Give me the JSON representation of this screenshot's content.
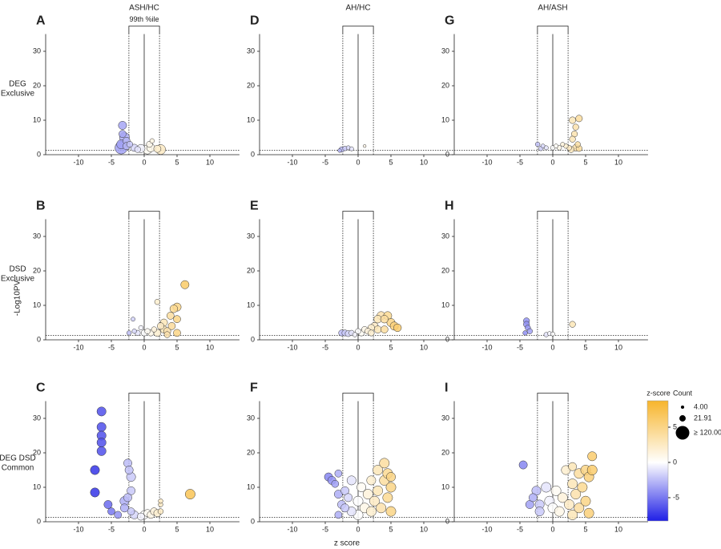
{
  "column_titles": [
    "ASH/HC",
    "AH/HC",
    "AH/ASH"
  ],
  "row_labels": [
    [
      "DEG",
      "Exclusive"
    ],
    [
      "DSD",
      "Exclusive"
    ],
    [
      "DEG DSD",
      "Common"
    ]
  ],
  "y_label": "-Log10PV",
  "x_label": "z score",
  "colorbar": {
    "title": "z-score",
    "clim": [
      -8.3,
      8.75
    ],
    "ticks": [
      -5,
      0,
      5
    ],
    "colors": [
      "#1f1fe6",
      "#ffffff",
      "#f7b52c"
    ]
  },
  "size_legend": {
    "title": "Count",
    "values": [
      {
        "value": 4,
        "label": "4.00"
      },
      {
        "value": 21.91,
        "label": "21.91"
      },
      {
        "value": 120,
        "label": "≥ 120.00"
      }
    ]
  },
  "chart_data": [
    {
      "type": "scatter",
      "title": "A",
      "annotation": "99th %ile",
      "xlim": [
        -15,
        14.5
      ],
      "ylim": [
        0,
        35
      ],
      "xticks": [
        -10,
        -5,
        0,
        5,
        10
      ],
      "yticks": [
        0,
        10,
        20,
        30
      ],
      "threshold_z": 2.33,
      "threshold_p": 1.3,
      "x": [
        -3.3,
        -3.3,
        -3,
        -2.7,
        -3.5,
        -3.5,
        -2.7,
        -2.2,
        -1.5,
        -0.5,
        0.5,
        1,
        1.2,
        0.8,
        2,
        2.5,
        -1
      ],
      "y": [
        8.5,
        6,
        5,
        4,
        3,
        2,
        2.5,
        3,
        2,
        1.8,
        1.5,
        2,
        4,
        3,
        1.7,
        1.5,
        1.5
      ],
      "sizes": [
        40,
        30,
        60,
        30,
        50,
        100,
        30,
        20,
        30,
        40,
        50,
        40,
        10,
        20,
        30,
        60,
        20
      ]
    },
    {
      "type": "scatter",
      "title": "B",
      "xlim": [
        -15,
        14.5
      ],
      "ylim": [
        0,
        35
      ],
      "xticks": [
        -10,
        -5,
        0,
        5,
        10
      ],
      "yticks": [
        0,
        10,
        20,
        30
      ],
      "threshold_z": 2.33,
      "threshold_p": 1.3,
      "x": [
        -2.3,
        -1.7,
        -1.5,
        -1,
        -0.5,
        0,
        0.5,
        1,
        1.5,
        2,
        2,
        2.5,
        3,
        3,
        3.5,
        4,
        4.2,
        4.5,
        5,
        5,
        5,
        6.2,
        3.5
      ],
      "y": [
        2,
        6,
        2.5,
        2,
        3.5,
        2,
        2.5,
        2,
        3,
        11,
        2,
        4,
        3,
        5,
        2.5,
        7,
        4,
        9,
        9.5,
        6,
        2,
        16,
        1.5
      ],
      "sizes": [
        10,
        8,
        10,
        15,
        10,
        20,
        15,
        20,
        15,
        15,
        30,
        25,
        30,
        30,
        30,
        30,
        30,
        35,
        40,
        30,
        30,
        40,
        20
      ]
    },
    {
      "type": "scatter",
      "title": "C",
      "xlim": [
        -15,
        14.5
      ],
      "ylim": [
        0,
        35
      ],
      "xticks": [
        -10,
        -5,
        0,
        5,
        10
      ],
      "yticks": [
        0,
        10,
        20,
        30
      ],
      "threshold_z": 2.33,
      "threshold_p": 1.3,
      "x": [
        -6.5,
        -6.5,
        -6.5,
        -6.5,
        -6.5,
        -7.5,
        -7.5,
        -5.5,
        -5,
        -4,
        -3,
        -3,
        -2.5,
        -2.3,
        -2,
        -2,
        -2.5,
        -2,
        -1.5,
        -0.5,
        0,
        0.5,
        1,
        1.5,
        2,
        2.5,
        2.5,
        2.5,
        7
      ],
      "y": [
        32,
        27.5,
        25,
        23,
        20.5,
        15,
        8.5,
        5,
        3,
        2,
        6,
        4,
        17,
        15,
        13,
        9,
        7,
        3,
        2,
        1.5,
        2,
        2.5,
        2,
        3,
        2.5,
        5,
        6,
        3,
        8
      ],
      "sizes": [
        50,
        50,
        50,
        50,
        50,
        50,
        50,
        40,
        30,
        30,
        50,
        40,
        40,
        40,
        50,
        40,
        40,
        30,
        40,
        30,
        40,
        30,
        30,
        30,
        30,
        10,
        10,
        15,
        60
      ]
    },
    {
      "type": "scatter",
      "title": "D",
      "xlim": [
        -15,
        14.5
      ],
      "ylim": [
        0,
        35
      ],
      "xticks": [
        -10,
        -5,
        0,
        5,
        10
      ],
      "yticks": [
        0,
        10,
        20,
        30
      ],
      "threshold_z": 2.33,
      "threshold_p": 1.3,
      "x": [
        -2.5,
        -2,
        -1.5,
        -1,
        -2.8,
        1
      ],
      "y": [
        1.5,
        1.8,
        2,
        1.7,
        1.2,
        2.5
      ],
      "sizes": [
        15,
        10,
        8,
        8,
        6,
        3
      ]
    },
    {
      "type": "scatter",
      "title": "E",
      "xlim": [
        -15,
        14.5
      ],
      "ylim": [
        0,
        35
      ],
      "xticks": [
        -10,
        -5,
        0,
        5,
        10
      ],
      "yticks": [
        0,
        10,
        20,
        30
      ],
      "threshold_z": 2.33,
      "threshold_p": 1.3,
      "x": [
        -2.5,
        -2,
        -1.5,
        -1,
        -0.5,
        0,
        0.5,
        1,
        1.5,
        2,
        2.5,
        3,
        3.5,
        4,
        4.5,
        5,
        5.5,
        6,
        3,
        4,
        2
      ],
      "y": [
        2,
        2,
        1.8,
        2,
        1.5,
        2.5,
        2,
        3,
        2.5,
        3.5,
        4,
        6,
        7,
        6,
        7,
        5,
        4,
        3.5,
        3,
        3,
        2
      ],
      "sizes": [
        20,
        20,
        20,
        15,
        10,
        15,
        20,
        20,
        20,
        25,
        30,
        35,
        40,
        35,
        40,
        40,
        40,
        35,
        30,
        30,
        20
      ]
    },
    {
      "type": "scatter",
      "title": "F",
      "xlim": [
        -15,
        14.5
      ],
      "ylim": [
        0,
        35
      ],
      "xticks": [
        -10,
        -5,
        0,
        5,
        10
      ],
      "yticks": [
        0,
        10,
        20,
        30
      ],
      "threshold_z": 2.33,
      "threshold_p": 1.3,
      "x": [
        -4.5,
        -4,
        -3.5,
        -3,
        -3,
        -2.5,
        -2,
        -2,
        -1.5,
        -1,
        -1,
        0,
        0,
        0.5,
        1,
        1.5,
        2,
        2,
        2.5,
        3,
        3,
        3.5,
        4,
        4,
        4.5,
        5,
        5,
        4.5,
        5,
        -3
      ],
      "y": [
        13,
        12,
        11,
        14,
        8,
        5,
        9,
        4,
        7,
        12,
        3,
        6,
        2,
        10,
        4,
        8,
        12,
        3,
        6,
        15,
        9,
        4,
        17,
        12,
        7,
        10,
        3,
        14,
        13,
        2
      ],
      "sizes": [
        40,
        40,
        30,
        30,
        40,
        40,
        40,
        40,
        40,
        50,
        50,
        60,
        60,
        50,
        60,
        60,
        50,
        60,
        60,
        60,
        60,
        60,
        60,
        60,
        60,
        60,
        60,
        60,
        50,
        30
      ]
    },
    {
      "type": "scatter",
      "title": "G",
      "xlim": [
        -15,
        14.5
      ],
      "ylim": [
        0,
        35
      ],
      "xticks": [
        -10,
        -5,
        0,
        5,
        10
      ],
      "yticks": [
        0,
        10,
        20,
        30
      ],
      "threshold_z": 2.33,
      "threshold_p": 1.3,
      "x": [
        -2.3,
        -1.5,
        -1.8,
        -1,
        0,
        0.5,
        1,
        1.5,
        2,
        2.5,
        3,
        3.5,
        4,
        3.3,
        3,
        3.5,
        2.8,
        4,
        3.8
      ],
      "y": [
        3,
        2.5,
        1.8,
        2,
        2,
        2.5,
        2,
        3,
        2.5,
        2,
        10,
        8,
        10.5,
        6,
        4.5,
        2,
        1.5,
        1.8,
        3
      ],
      "sizes": [
        10,
        8,
        10,
        8,
        10,
        8,
        10,
        8,
        10,
        12,
        25,
        20,
        25,
        20,
        20,
        25,
        20,
        20,
        15
      ]
    },
    {
      "type": "scatter",
      "title": "H",
      "xlim": [
        -15,
        14.5
      ],
      "ylim": [
        0,
        35
      ],
      "xticks": [
        -10,
        -5,
        0,
        5,
        10
      ],
      "yticks": [
        0,
        10,
        20,
        30
      ],
      "threshold_z": 2.33,
      "threshold_p": 1.3,
      "x": [
        -4,
        -4,
        -3.8,
        -3.5,
        -4.2,
        -1,
        -0.5,
        0,
        3
      ],
      "y": [
        5.5,
        4.5,
        3.5,
        2.5,
        2,
        1.5,
        1.8,
        1.7,
        4.5
      ],
      "sizes": [
        20,
        20,
        15,
        15,
        10,
        10,
        8,
        8,
        20
      ]
    },
    {
      "type": "scatter",
      "title": "I",
      "xlim": [
        -15,
        14.5
      ],
      "ylim": [
        0,
        35
      ],
      "xticks": [
        -10,
        -5,
        0,
        5,
        10
      ],
      "yticks": [
        0,
        10,
        20,
        30
      ],
      "threshold_z": 2.33,
      "threshold_p": 1.3,
      "x": [
        -4.5,
        -3.5,
        -3,
        -2.5,
        -2,
        -2,
        -1,
        -0.5,
        0,
        0.5,
        1,
        1.5,
        2,
        2.5,
        3,
        3,
        3.5,
        4,
        4,
        4.5,
        5,
        5,
        5.5,
        5.5,
        6,
        6,
        3
      ],
      "y": [
        16.5,
        5,
        7,
        9,
        5,
        3,
        10,
        6,
        4,
        9,
        3,
        7,
        15,
        5,
        11,
        2,
        8,
        14,
        4,
        10,
        15,
        6,
        13,
        2.5,
        19,
        15,
        16
      ],
      "sizes": [
        40,
        40,
        40,
        50,
        50,
        50,
        60,
        60,
        60,
        60,
        60,
        60,
        50,
        60,
        60,
        60,
        60,
        60,
        60,
        60,
        60,
        60,
        60,
        60,
        50,
        60,
        40
      ]
    }
  ]
}
